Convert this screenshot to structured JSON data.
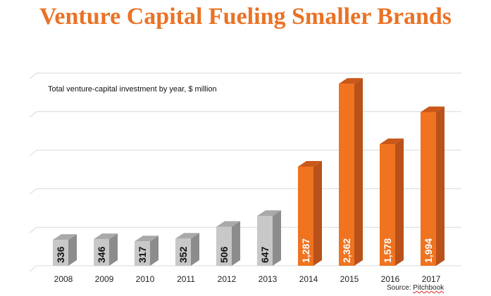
{
  "chart_data": {
    "type": "bar",
    "title": "Venture Capital Fueling Smaller Brands",
    "subtitle": "Total venture-capital investment by year, $ million",
    "categories": [
      "2008",
      "2009",
      "2010",
      "2011",
      "2012",
      "2013",
      "2014",
      "2015",
      "2016",
      "2017"
    ],
    "values": [
      336,
      346,
      317,
      352,
      506,
      647,
      1287,
      2362,
      1578,
      1994
    ],
    "value_labels": [
      "336",
      "346",
      "317",
      "352",
      "506",
      "647",
      "1,287",
      "2,362",
      "1,578",
      "1,994"
    ],
    "highlighted_from_index": 6,
    "ylim": [
      0,
      2500
    ],
    "grid": true,
    "colors": {
      "gray_front": "#c8c8c8",
      "gray_side": "#8c8c8c",
      "gray_top": "#a9a9a9",
      "orange_front": "#f07320",
      "orange_side": "#b9511a",
      "orange_top": "#c9581a",
      "title": "#ea7225"
    },
    "source": {
      "prefix": "Source: ",
      "name": "Pitchbook"
    }
  }
}
